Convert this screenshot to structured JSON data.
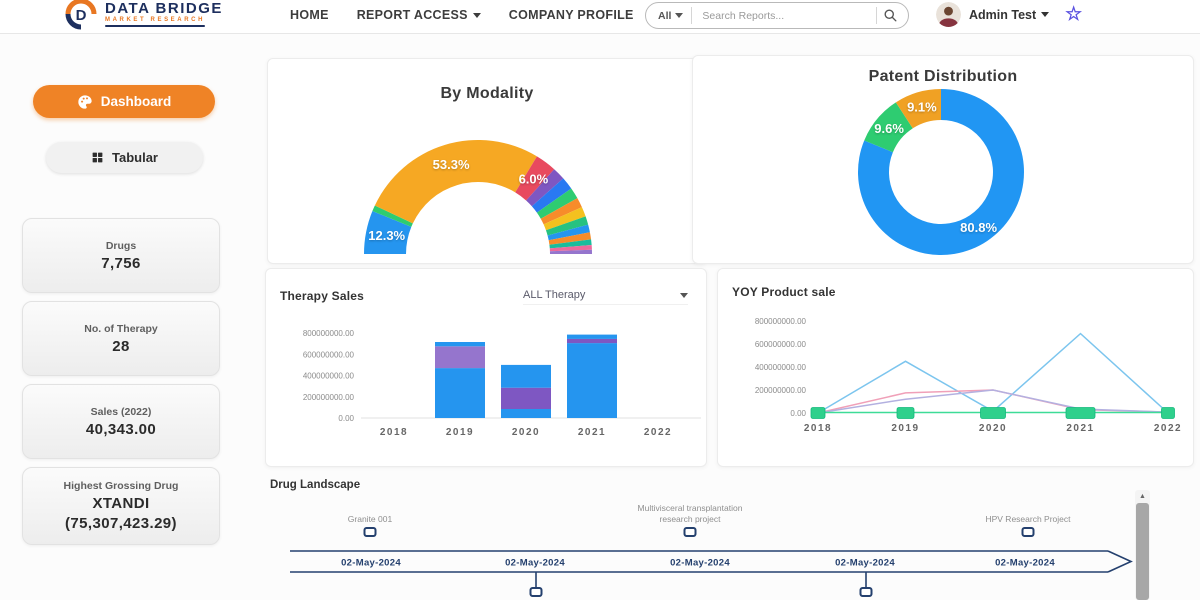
{
  "navbar": {
    "brand": {
      "title": "DATA BRIDGE",
      "subtitle": "MARKET RESEARCH"
    },
    "links": [
      {
        "label": "HOME",
        "has_dropdown": false
      },
      {
        "label": "REPORT ACCESS",
        "has_dropdown": true
      },
      {
        "label": "COMPANY PROFILE",
        "has_dropdown": false
      }
    ],
    "search": {
      "filter_label": "All",
      "placeholder": "Search Reports..."
    },
    "user": {
      "name": "Admin Test"
    }
  },
  "sidebar": {
    "nav_buttons": [
      {
        "label": "Dashboard",
        "icon": "palette-icon",
        "active": true
      },
      {
        "label": "Tabular",
        "icon": "grid-icon",
        "active": false
      }
    ],
    "stats": [
      {
        "label": "Drugs",
        "value": "7,756"
      },
      {
        "label": "No. of Therapy",
        "value": "28"
      },
      {
        "label": "Sales (2022)",
        "value": "40,343.00"
      },
      {
        "label": "Highest Grossing Drug",
        "value": "XTANDI",
        "value2": "(75,307,423.29)"
      }
    ]
  },
  "chart_data": [
    {
      "type": "pie",
      "variant": "half-donut",
      "title": "By Modality",
      "slices": [
        {
          "value": 12.3,
          "color": "#2595ef",
          "label": "12.3%"
        },
        {
          "value": 1.7,
          "color": "#2ecc71"
        },
        {
          "value": 53.3,
          "color": "#f6a823",
          "label": "53.3%"
        },
        {
          "value": 6.0,
          "color": "#e84a5f",
          "label": "6.0%"
        },
        {
          "value": 3.6,
          "color": "#7e57c2"
        },
        {
          "value": 3.6,
          "color": "#2979f2"
        },
        {
          "value": 3.2,
          "color": "#2ecc71"
        },
        {
          "value": 2.8,
          "color": "#f78c2a"
        },
        {
          "value": 2.8,
          "color": "#f4c11f"
        },
        {
          "value": 2.4,
          "color": "#26c281"
        },
        {
          "value": 2.2,
          "color": "#2595ef"
        },
        {
          "value": 2.0,
          "color": "#f78c2a"
        },
        {
          "value": 1.6,
          "color": "#1abc9c"
        },
        {
          "value": 1.3,
          "color": "#ec6a9c"
        },
        {
          "value": 1.2,
          "color": "#9575cd"
        }
      ]
    },
    {
      "type": "pie",
      "variant": "donut",
      "title": "Patent Distribution",
      "slices": [
        {
          "value": 80.8,
          "color": "#2196f3",
          "label": "80.8%"
        },
        {
          "value": 9.6,
          "color": "#2ecc71",
          "label": "9.6%"
        },
        {
          "value": 9.1,
          "color": "#f0a124",
          "label": "9.1%"
        }
      ]
    },
    {
      "type": "bar",
      "title": "Therapy Sales",
      "filter_label": "ALL Therapy",
      "categories": [
        "2018",
        "2019",
        "2020",
        "2021",
        "2022"
      ],
      "yticks": [
        "800000000.00",
        "600000000.00",
        "400000000.00",
        "200000000.00",
        "0.00"
      ],
      "ymax": 800000000,
      "stacks": [
        [],
        [
          {
            "value": 470000000,
            "color": "#2595ef"
          },
          {
            "value": 205000000,
            "color": "#9575cd"
          },
          {
            "value": 40000000,
            "color": "#2595ef"
          }
        ],
        [
          {
            "value": 85000000,
            "color": "#2595ef"
          },
          {
            "value": 200000000,
            "color": "#7e57c2"
          },
          {
            "value": 215000000,
            "color": "#2595ef"
          }
        ],
        [
          {
            "value": 705000000,
            "color": "#2595ef"
          },
          {
            "value": 40000000,
            "color": "#7e57c2"
          },
          {
            "value": 40000000,
            "color": "#2595ef"
          }
        ],
        []
      ]
    },
    {
      "type": "line",
      "title": "YOY Product sale",
      "x": [
        "2018",
        "2019",
        "2020",
        "2021",
        "2022"
      ],
      "yticks": [
        "800000000.00",
        "600000000.00",
        "400000000.00",
        "200000000.00",
        "0.00"
      ],
      "ymax": 800000000,
      "series": [
        {
          "name": "series-sky",
          "color": "#7cc5ee",
          "values": [
            0,
            450000000,
            15000000,
            690000000,
            0
          ]
        },
        {
          "name": "series-pink",
          "color": "#f0a0b8",
          "values": [
            0,
            175000000,
            200000000,
            30000000,
            8000000
          ]
        },
        {
          "name": "series-lavender",
          "color": "#b3b0e0",
          "values": [
            0,
            120000000,
            200000000,
            35000000,
            8000000
          ]
        },
        {
          "name": "series-green",
          "color": "#3ddc97",
          "values": [
            4000000,
            4000000,
            4000000,
            4000000,
            4000000
          ]
        }
      ],
      "markers": {
        "color": "#2fd08c",
        "widths": [
          14,
          17,
          25,
          29,
          13
        ]
      }
    }
  ],
  "timeline": {
    "title": "Drug Landscape",
    "dates": [
      "02-May-2024",
      "02-May-2024",
      "02-May-2024",
      "02-May-2024",
      "02-May-2024"
    ],
    "milestones_above": [
      {
        "lines": [
          "Granite 001"
        ],
        "x": 370
      },
      {
        "lines": [
          "Multivisceral transplantation",
          "research project"
        ],
        "x": 690
      },
      {
        "lines": [
          "HPV Research Project"
        ],
        "x": 1028
      }
    ],
    "connectors_below": [
      536,
      866
    ]
  },
  "colors": {
    "accent_orange": "#ef8326",
    "brand_navy": "#1d2f5e",
    "timeline_navy": "#24406e",
    "primary_blue": "#2196f3",
    "green": "#2ecc71"
  }
}
